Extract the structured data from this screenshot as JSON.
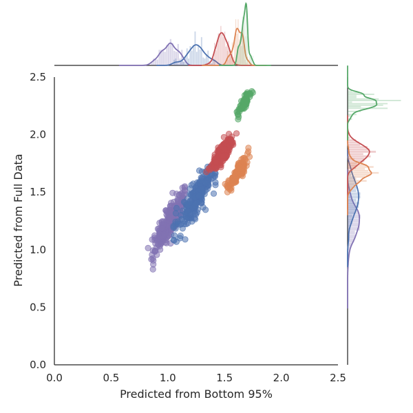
{
  "chart_data": {
    "type": "scatter",
    "subtype": "jointplot",
    "title": "",
    "xlabel": "Predicted from Bottom 95%",
    "ylabel": "Predicted from Full Data",
    "xlim": [
      0.0,
      2.5
    ],
    "ylim": [
      0.0,
      2.5
    ],
    "xticks": [
      "0.0",
      "0.5",
      "1.0",
      "1.5",
      "2.0",
      "2.5"
    ],
    "yticks": [
      "0.0",
      "0.5",
      "1.0",
      "1.5",
      "2.0",
      "2.5"
    ],
    "grid": false,
    "legend": "none",
    "marginals": "histogram + kde on top (x) and right (y)",
    "series": [
      {
        "color": "#8172b3",
        "x_center": 1.02,
        "y_center": 1.25,
        "x_spread": 0.07,
        "y_spread": 0.12,
        "x_range": [
          0.72,
          1.15
        ],
        "y_range": [
          0.64,
          1.55
        ],
        "n_points": 260
      },
      {
        "color": "#4c72b0",
        "x_center": 1.25,
        "y_center": 1.45,
        "x_spread": 0.08,
        "y_spread": 0.13,
        "x_range": [
          1.05,
          1.42
        ],
        "y_range": [
          1.0,
          1.72
        ],
        "n_points": 260
      },
      {
        "color": "#c44e52",
        "x_center": 1.48,
        "y_center": 1.84,
        "x_spread": 0.05,
        "y_spread": 0.07,
        "x_range": [
          1.33,
          1.62
        ],
        "y_range": [
          1.5,
          2.02
        ],
        "n_points": 200
      },
      {
        "color": "#dd8452",
        "x_center": 1.62,
        "y_center": 1.68,
        "x_spread": 0.04,
        "y_spread": 0.06,
        "x_range": [
          1.45,
          1.72
        ],
        "y_range": [
          1.45,
          1.9
        ],
        "n_points": 140
      },
      {
        "color": "#55a868",
        "x_center": 1.68,
        "y_center": 2.28,
        "x_spread": 0.03,
        "y_spread": 0.05,
        "x_range": [
          1.6,
          1.76
        ],
        "y_range": [
          2.1,
          2.45
        ],
        "n_points": 70
      }
    ]
  }
}
